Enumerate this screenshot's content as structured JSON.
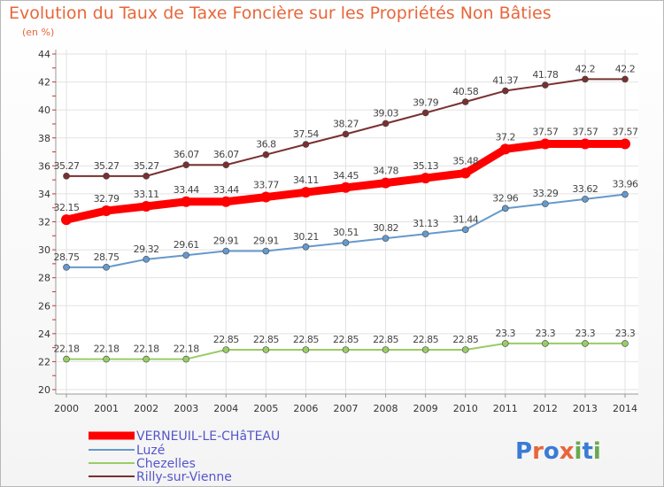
{
  "title": "Evolution du Taux de Taxe Foncière sur les Propriétés Non Bâties",
  "subtitle": "(en %)",
  "logo": "Proxiti",
  "chart_data": {
    "type": "line",
    "title": "Evolution du Taux de Taxe Foncière sur les Propriétés Non Bâties",
    "ylabel": "(en %)",
    "xlabel": "",
    "x": [
      "2000",
      "2001",
      "2002",
      "2003",
      "2004",
      "2005",
      "2006",
      "2007",
      "2008",
      "2009",
      "2010",
      "2011",
      "2012",
      "2013",
      "2014"
    ],
    "ylim": [
      20,
      44
    ],
    "yticks": [
      20,
      22,
      24,
      26,
      28,
      30,
      32,
      34,
      36,
      38,
      40,
      42,
      44
    ],
    "grid": true,
    "legend": "bottom-left",
    "series": [
      {
        "name": "VERNEUIL-LE-CHâTEAU",
        "color": "#ff0000",
        "values": [
          32.15,
          32.79,
          33.11,
          33.44,
          33.44,
          33.77,
          34.11,
          34.45,
          34.78,
          35.13,
          35.48,
          37.2,
          37.57,
          37.57,
          37.57
        ]
      },
      {
        "name": "Luzé",
        "color": "#6699cc",
        "values": [
          28.75,
          28.75,
          29.32,
          29.61,
          29.91,
          29.91,
          30.21,
          30.51,
          30.82,
          31.13,
          31.44,
          32.96,
          33.29,
          33.62,
          33.96
        ]
      },
      {
        "name": "Chezelles",
        "color": "#99cc66",
        "values": [
          22.18,
          22.18,
          22.18,
          22.18,
          22.85,
          22.85,
          22.85,
          22.85,
          22.85,
          22.85,
          22.85,
          23.3,
          23.3,
          23.3,
          23.3
        ]
      },
      {
        "name": "Rilly-sur-Vienne",
        "color": "#7a3030",
        "values": [
          35.27,
          35.27,
          35.27,
          36.07,
          36.07,
          36.8,
          37.54,
          38.27,
          39.03,
          39.79,
          40.58,
          41.37,
          41.78,
          42.2,
          42.2
        ]
      }
    ]
  }
}
